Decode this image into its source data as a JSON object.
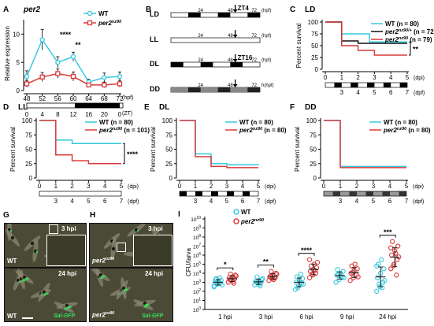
{
  "colors": {
    "wt": "#35c9de",
    "mut": "#d93a3a",
    "het": "#111111"
  },
  "panelA": {
    "letter": "A",
    "title": "per2",
    "ylabel": "Relative expression",
    "hpf_unit": "(hpf)",
    "zt_unit": "(ZT)",
    "legend_wt": "WT",
    "legend_mut": "per2",
    "legend_mut_sup": "nz90",
    "star1": "****",
    "star2": "**"
  },
  "panelB": {
    "letter": "B",
    "rows": [
      {
        "label": "LD",
        "zt": "ZT4"
      },
      {
        "label": "LL",
        "zt": ""
      },
      {
        "label": "DL",
        "zt": "ZT16"
      },
      {
        "label": "DD",
        "zt": ""
      }
    ],
    "t24": "24",
    "t48": "48",
    "t72": "72",
    "unit": "(hpf)",
    "dd_unit": "h(hpf)"
  },
  "survival": {
    "ylabel": "Percent survival",
    "dpi_unit": "(dpi)",
    "dpf_unit": "(dpf)",
    "C": {
      "letter": "C",
      "title": "LD",
      "legend": [
        {
          "text": "WT",
          "n": "(n = 80)"
        },
        {
          "text": "per2",
          "sup": "nz90/+",
          "n": "(n = 72)"
        },
        {
          "text": "per2",
          "sup": "nz90",
          "n": "(n = 79)"
        }
      ],
      "sig": "**"
    },
    "D": {
      "letter": "D",
      "title": "LL",
      "legend": [
        {
          "text": "WT",
          "n": "(n = 80)"
        },
        {
          "text": "per2",
          "sup": "nz90",
          "n": "(n = 101)"
        }
      ],
      "sig": "****"
    },
    "E": {
      "letter": "E",
      "title": "DL",
      "legend": [
        {
          "text": "WT",
          "n": "(n = 80)"
        },
        {
          "text": "per2",
          "sup": "nz90",
          "n": "(n = 80)"
        }
      ],
      "sig": ""
    },
    "F": {
      "letter": "F",
      "title": "DD",
      "legend": [
        {
          "text": "WT",
          "n": "(n = 80)"
        },
        {
          "text": "per2",
          "sup": "nz90",
          "n": "(n = 80)"
        }
      ],
      "sig": ""
    }
  },
  "photos": {
    "G": {
      "letter": "G",
      "top_hpi": "3 hpi",
      "bottom_hpi": "24 hpi",
      "geno": "WT",
      "geno_sup": "",
      "sal": "Sal-GFP"
    },
    "H": {
      "letter": "H",
      "top_hpi": "3 hpi",
      "bottom_hpi": "24 hpi",
      "geno": "per2",
      "geno_sup": "nz90",
      "sal": "Sal-GFP"
    }
  },
  "panelI": {
    "letter": "I",
    "ylabel": "CFU/larva",
    "legend_wt": "WT",
    "legend_mut": "per2",
    "legend_mut_sup": "nz90",
    "stars": [
      "*",
      "**",
      "****",
      "",
      "***"
    ]
  },
  "chart_data": [
    {
      "panel": "A",
      "type": "line",
      "x": [
        48,
        52,
        56,
        60,
        64,
        68,
        72
      ],
      "x_zt": [
        0,
        4,
        8,
        12,
        16,
        20,
        0
      ],
      "xlabel": "(hpf)",
      "ylabel": "Relative expression",
      "ylim": [
        0,
        12
      ],
      "yticks": [
        0,
        5,
        10
      ],
      "series": [
        {
          "name": "WT",
          "values": [
            2.5,
            9.0,
            5.0,
            6.0,
            1.5,
            2.3,
            2.5
          ],
          "err": [
            1.0,
            1.8,
            1.0,
            0.8,
            0.5,
            0.8,
            0.8
          ]
        },
        {
          "name": "per2nz90",
          "values": [
            1.2,
            2.4,
            3.0,
            2.5,
            1.0,
            1.0,
            1.2
          ],
          "err": [
            0.6,
            0.8,
            0.8,
            0.8,
            0.3,
            0.5,
            0.6
          ]
        }
      ]
    },
    {
      "panel": "C",
      "type": "line",
      "title": "LD",
      "x": [
        0,
        1,
        2,
        3,
        4,
        5
      ],
      "xlabel": "(dpi)",
      "ylabel": "Percent survival",
      "ylim": [
        0,
        100
      ],
      "yticks": [
        0,
        25,
        50,
        75,
        100
      ],
      "dpf_ticks": [
        3,
        4,
        5,
        6,
        7
      ],
      "series": [
        {
          "name": "WT",
          "steps": [
            [
              0,
              100
            ],
            [
              1,
              75
            ],
            [
              2,
              75
            ],
            [
              2.7,
              58
            ],
            [
              5,
              58
            ]
          ]
        },
        {
          "name": "per2nz90/+",
          "steps": [
            [
              0,
              100
            ],
            [
              1,
              60
            ],
            [
              2,
              55
            ],
            [
              5,
              55
            ]
          ]
        },
        {
          "name": "per2nz90",
          "steps": [
            [
              0,
              100
            ],
            [
              1,
              50
            ],
            [
              2,
              40
            ],
            [
              3,
              30
            ],
            [
              5,
              30
            ]
          ]
        }
      ]
    },
    {
      "panel": "D",
      "type": "line",
      "title": "LL",
      "x": [
        0,
        1,
        2,
        3,
        4,
        5
      ],
      "xlabel": "(dpi)",
      "ylabel": "Percent survival",
      "ylim": [
        0,
        100
      ],
      "yticks": [
        0,
        25,
        50,
        75,
        100
      ],
      "dpf_ticks": [
        3,
        4,
        5,
        6,
        7
      ],
      "series": [
        {
          "name": "WT",
          "steps": [
            [
              0,
              100
            ],
            [
              1,
              66
            ],
            [
              2,
              60
            ],
            [
              5,
              60
            ]
          ]
        },
        {
          "name": "per2nz90",
          "steps": [
            [
              0,
              100
            ],
            [
              1,
              40
            ],
            [
              2,
              30
            ],
            [
              3,
              25
            ],
            [
              5,
              25
            ]
          ]
        }
      ]
    },
    {
      "panel": "E",
      "type": "line",
      "title": "DL",
      "x": [
        0,
        1,
        2,
        3,
        4,
        5
      ],
      "xlabel": "(dpi)",
      "ylabel": "Percent survival",
      "ylim": [
        0,
        100
      ],
      "yticks": [
        0,
        25,
        50,
        75,
        100
      ],
      "dpf_ticks": [
        3,
        4,
        5,
        6,
        7
      ],
      "series": [
        {
          "name": "WT",
          "steps": [
            [
              0,
              100
            ],
            [
              1,
              42
            ],
            [
              2,
              25
            ],
            [
              3,
              23
            ],
            [
              5,
              22
            ]
          ]
        },
        {
          "name": "per2nz90",
          "steps": [
            [
              0,
              100
            ],
            [
              1,
              37
            ],
            [
              2,
              20
            ],
            [
              3,
              18
            ],
            [
              5,
              18
            ]
          ]
        }
      ]
    },
    {
      "panel": "F",
      "type": "line",
      "title": "DD",
      "x": [
        0,
        1,
        2,
        3,
        4,
        5
      ],
      "xlabel": "(dpi)",
      "ylabel": "Percent survival",
      "ylim": [
        0,
        100
      ],
      "yticks": [
        0,
        25,
        50,
        75,
        100
      ],
      "dpf_ticks": [
        3,
        4,
        5,
        6,
        7
      ],
      "series": [
        {
          "name": "WT",
          "steps": [
            [
              0,
              100
            ],
            [
              1,
              20
            ],
            [
              5,
              20
            ]
          ]
        },
        {
          "name": "per2nz90",
          "steps": [
            [
              0,
              100
            ],
            [
              1,
              18
            ],
            [
              5,
              18
            ]
          ]
        }
      ]
    },
    {
      "panel": "I",
      "type": "scatter",
      "scale": "log",
      "categories": [
        "1 hpi",
        "3 hpi",
        "6 hpi",
        "9 hpi",
        "24 hpi"
      ],
      "ylabel": "CFU/larva",
      "ylim_exp": [
        0,
        10
      ],
      "series": [
        {
          "name": "WT",
          "log10_points": [
            [
              2.6,
              2.8,
              2.9,
              3.0,
              3.1,
              3.2,
              3.3,
              3.0,
              2.7,
              3.4,
              3.5,
              2.5
            ],
            [
              2.7,
              2.9,
              3.0,
              3.1,
              3.2,
              3.3,
              3.0,
              2.8,
              3.4,
              3.6,
              2.6
            ],
            [
              2.2,
              2.6,
              2.9,
              3.0,
              3.2,
              3.4,
              3.6,
              3.0,
              2.8,
              2.4,
              3.9
            ],
            [
              3.0,
              3.3,
              3.6,
              3.8,
              4.0,
              4.2,
              4.4,
              3.7,
              3.5,
              3.9
            ],
            [
              2.0,
              2.5,
              3.0,
              3.5,
              4.0,
              4.5,
              5.0,
              5.5,
              3.2,
              2.8,
              2.4,
              4.8
            ]
          ]
        },
        {
          "name": "per2nz90",
          "log10_points": [
            [
              3.0,
              3.2,
              3.4,
              3.5,
              3.6,
              3.8,
              3.3,
              3.1,
              3.7,
              3.9,
              2.9
            ],
            [
              3.2,
              3.4,
              3.5,
              3.6,
              3.8,
              4.0,
              3.7,
              3.3,
              3.9,
              4.2,
              3.5
            ],
            [
              3.5,
              3.8,
              4.0,
              4.2,
              4.4,
              4.6,
              4.8,
              5.0,
              5.2,
              3.9,
              4.3,
              5.5
            ],
            [
              3.2,
              3.5,
              3.8,
              4.0,
              4.3,
              4.5,
              4.8,
              5.0,
              3.6,
              4.1
            ],
            [
              4.5,
              5.0,
              5.5,
              6.0,
              6.5,
              7.0,
              7.5,
              6.2,
              5.8,
              4.8,
              3.8,
              6.8
            ]
          ]
        }
      ]
    }
  ]
}
